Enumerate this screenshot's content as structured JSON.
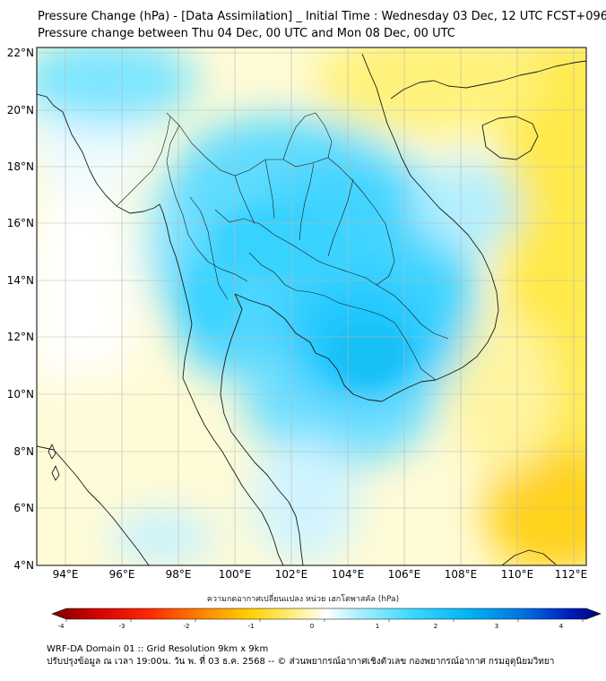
{
  "header": {
    "title_line1": "Pressure Change (hPa) - [Data Assimilation] _ Initial Time : Wednesday 03 Dec, 12 UTC FCST+096",
    "title_line2": "Pressure change between Thu 04 Dec, 00 UTC and Mon 08 Dec, 00 UTC"
  },
  "map": {
    "lat_labels": [
      "22°N",
      "20°N",
      "18°N",
      "16°N",
      "14°N",
      "12°N",
      "10°N",
      "8°N",
      "6°N",
      "4°N"
    ],
    "lon_labels": [
      "94°E",
      "96°E",
      "98°E",
      "100°E",
      "102°E",
      "104°E",
      "106°E",
      "108°E",
      "110°E",
      "112°E"
    ],
    "lat_range": [
      4,
      22
    ],
    "lon_range": [
      93,
      112.5
    ],
    "colors": {
      "negative_yellow": "#fff080",
      "neutral": "#ffffff",
      "positive_cyan": "#22d6ff",
      "strong_blue": "#1aa8f0",
      "orange": "#ffd21a",
      "coastline": "#1a1a1a"
    }
  },
  "colorbar": {
    "title": "ความกดอากาศเปลี่ยนแปลง หน่วย เฮกโตพาสคัล (hPa)",
    "ticks": [
      "-4",
      "-3",
      "-2",
      "-1",
      "0",
      "1",
      "2",
      "3",
      "4"
    ],
    "range": [
      -4,
      4
    ]
  },
  "footer": {
    "line1": "WRF-DA Domain 01 :: Grid Resolution 9km x 9km",
    "line2": "ปรับปรุงข้อมูล ณ เวลา 19:00น. วัน พ. ที่ 03 ธ.ค. 2568 -- © ส่วนพยากรณ์อากาศเชิงตัวเลข กองพยากรณ์อากาศ กรมอุตุนิยมวิทยา"
  }
}
